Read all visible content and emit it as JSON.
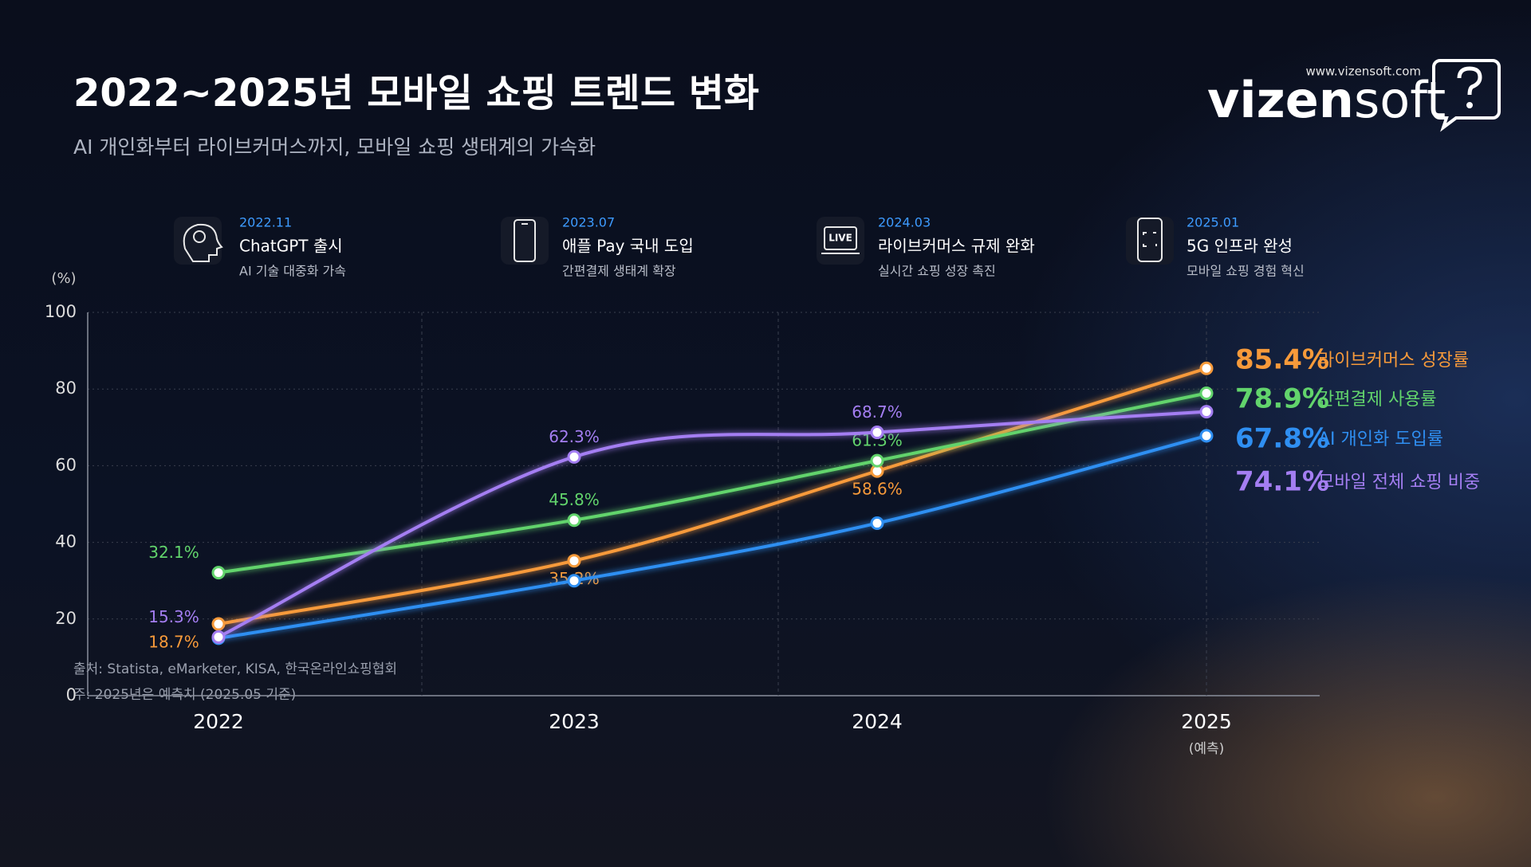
{
  "header": {
    "title": "2022~2025년 모바일 쇼핑 트렌드 변화",
    "subtitle": "AI 개인화부터 라이브커머스까지, 모바일 쇼핑 생태계의 가속화"
  },
  "logo": {
    "url": "www.vizensoft.com",
    "bold": "vizen",
    "light": "soft"
  },
  "events": [
    {
      "date": "2022.11",
      "title": "ChatGPT 출시",
      "desc": "AI 기술 대중화 가속"
    },
    {
      "date": "2023.07",
      "title": "애플 Pay 국내 도입",
      "desc": "간편결제 생태계 확장"
    },
    {
      "date": "2024.03",
      "title": "라이브커머스 규제 완화",
      "desc": "실시간 쇼핑 성장 촉진"
    },
    {
      "date": "2025.01",
      "title": "5G 인프라 완성",
      "desc": "모바일 쇼핑 경험 혁신"
    }
  ],
  "chart_data": {
    "type": "line",
    "y_label": "(%)",
    "categories": [
      "2022",
      "2023",
      "2024",
      "2025"
    ],
    "forecast_note": "(예측)",
    "ylim": [
      0,
      100
    ],
    "yticks": [
      0,
      20,
      40,
      60,
      80,
      100
    ],
    "grid": true,
    "series": [
      {
        "name": "라이브커머스 성장률",
        "color": "#f79a3a",
        "values": [
          18.7,
          35.2,
          58.6,
          85.4
        ],
        "value_labels": [
          "18.7%",
          "35.2%",
          "58.6%",
          "85.4%"
        ]
      },
      {
        "name": "간편결제 사용률",
        "color": "#62d46c",
        "values": [
          32.1,
          45.8,
          61.3,
          78.9
        ],
        "value_labels": [
          "32.1%",
          "45.8%",
          "61.3%",
          "78.9%"
        ]
      },
      {
        "name": "AI 개인화 도입률",
        "color": "#2f8ff2",
        "values": [
          15,
          30,
          45,
          67.8
        ],
        "value_labels": [
          null,
          null,
          null,
          "67.8%"
        ]
      },
      {
        "name": "모바일 전체 쇼핑 비중",
        "color": "#a47ef2",
        "values": [
          15.3,
          62.3,
          68.7,
          74.1
        ],
        "value_labels": [
          "15.3%",
          "62.3%",
          "68.7%",
          "74.1%"
        ]
      }
    ]
  },
  "footer": {
    "source": "출처: Statista, eMarketer, KISA, 한국온라인쇼핑협회",
    "note": "주: 2025년은 예측치 (2025.05 기준)"
  }
}
